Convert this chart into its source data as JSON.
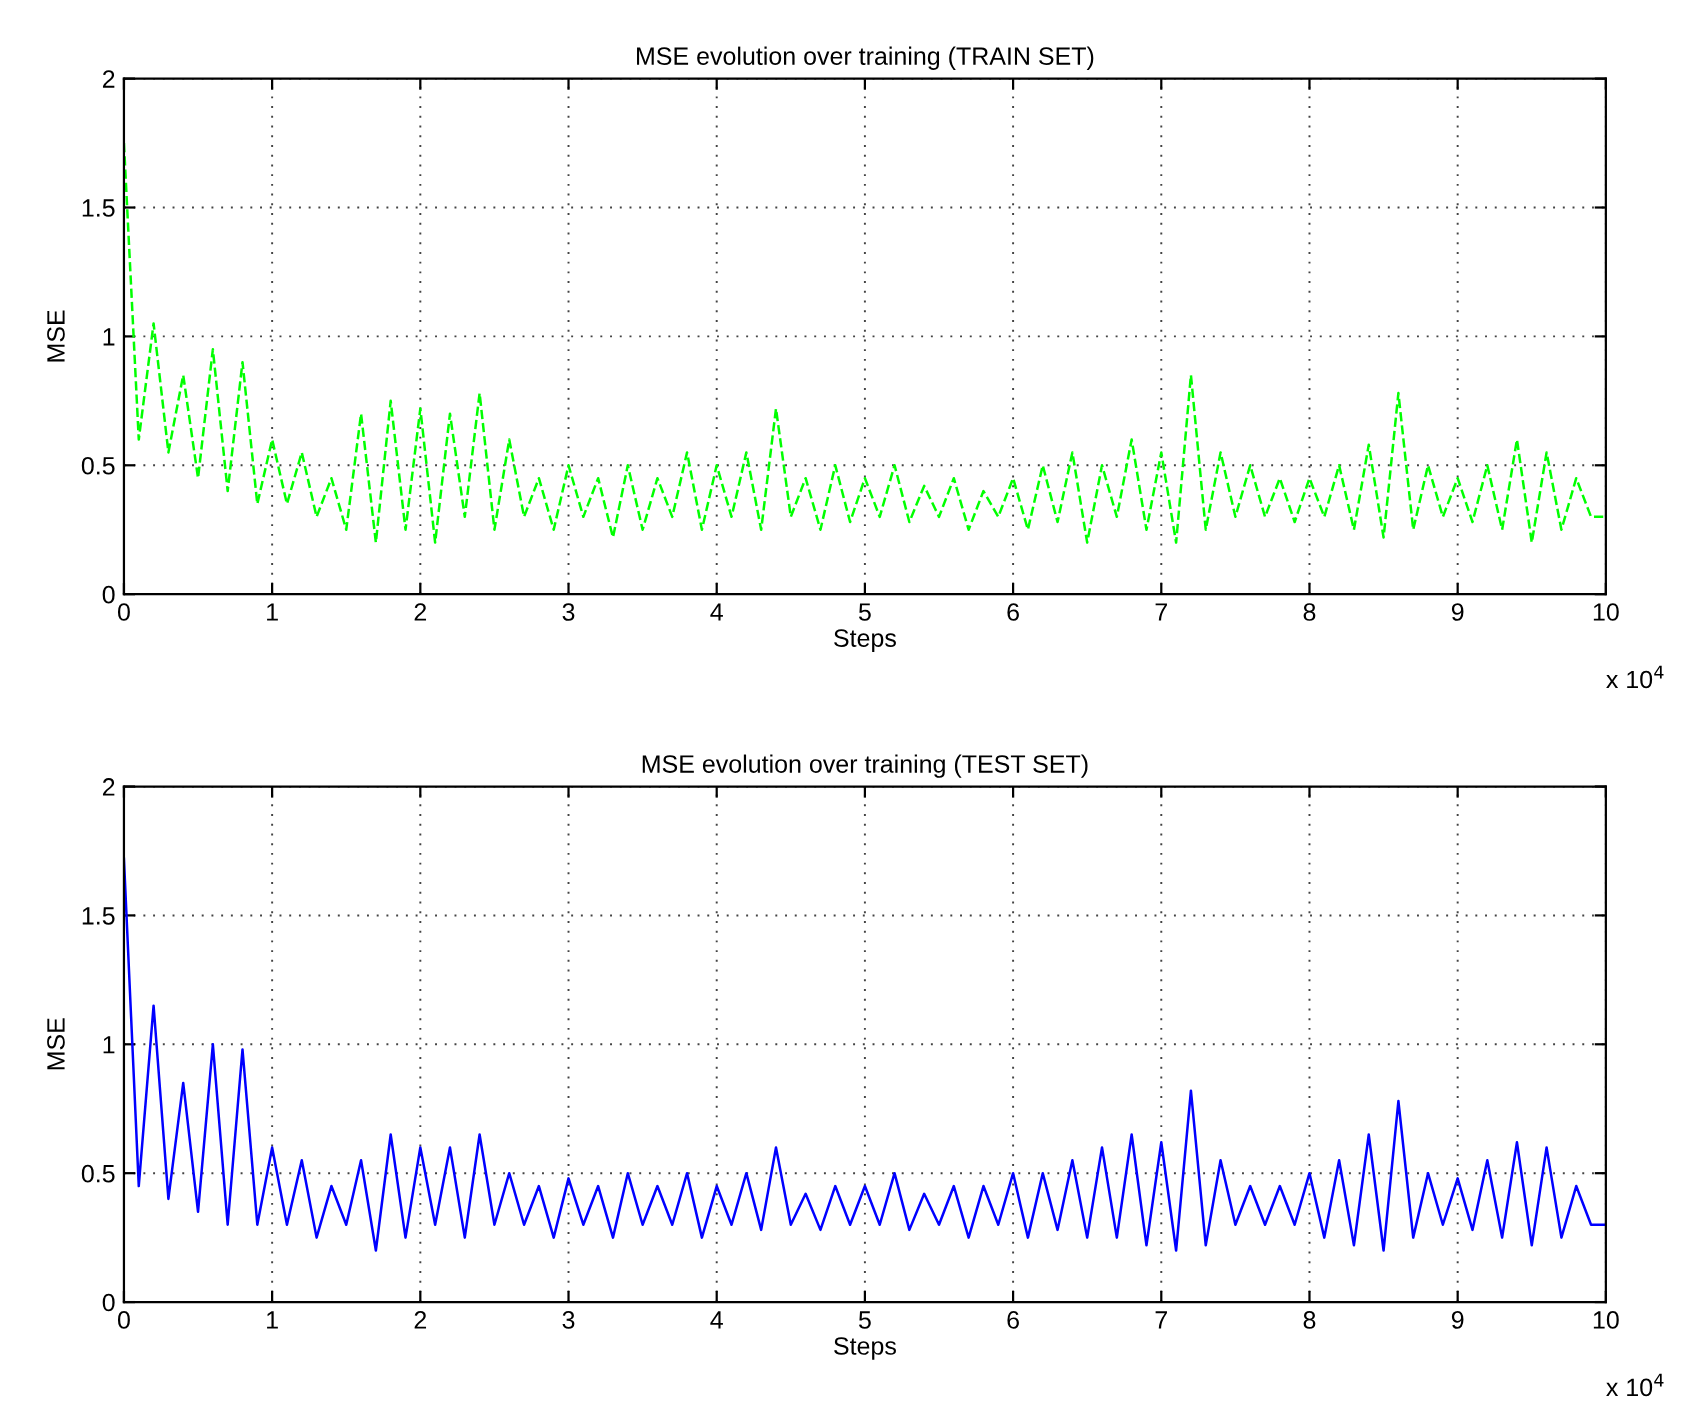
{
  "chart_data": [
    {
      "type": "line",
      "title": "MSE evolution over training (TRAIN SET)",
      "xlabel": "Steps",
      "ylabel": "MSE",
      "x": [
        0,
        0.1,
        0.2,
        0.3,
        0.4,
        0.5,
        0.6,
        0.7,
        0.8,
        0.9,
        1,
        1.1,
        1.2,
        1.3,
        1.4,
        1.5,
        1.6,
        1.7,
        1.8,
        1.9,
        2,
        2.1,
        2.2,
        2.3,
        2.4,
        2.5,
        2.6,
        2.7,
        2.8,
        2.9,
        3,
        3.1,
        3.2,
        3.3,
        3.4,
        3.5,
        3.6,
        3.7,
        3.8,
        3.9,
        4,
        4.1,
        4.2,
        4.3,
        4.4,
        4.5,
        4.6,
        4.7,
        4.8,
        4.9,
        5,
        5.1,
        5.2,
        5.3,
        5.4,
        5.5,
        5.6,
        5.7,
        5.8,
        5.9,
        6,
        6.1,
        6.2,
        6.3,
        6.4,
        6.5,
        6.6,
        6.7,
        6.8,
        6.9,
        7,
        7.1,
        7.2,
        7.3,
        7.4,
        7.5,
        7.6,
        7.7,
        7.8,
        7.9,
        8,
        8.1,
        8.2,
        8.3,
        8.4,
        8.5,
        8.6,
        8.7,
        8.8,
        8.9,
        9,
        9.1,
        9.2,
        9.3,
        9.4,
        9.5,
        9.6,
        9.7,
        9.8,
        9.9,
        10
      ],
      "series": [
        {
          "color": "#00ff00",
          "line_style": "dashed",
          "values": [
            1.75,
            0.6,
            1.05,
            0.55,
            0.85,
            0.45,
            0.95,
            0.4,
            0.9,
            0.35,
            0.6,
            0.35,
            0.55,
            0.3,
            0.45,
            0.25,
            0.7,
            0.2,
            0.75,
            0.25,
            0.72,
            0.2,
            0.7,
            0.3,
            0.78,
            0.25,
            0.6,
            0.3,
            0.45,
            0.25,
            0.5,
            0.3,
            0.45,
            0.22,
            0.5,
            0.25,
            0.45,
            0.3,
            0.55,
            0.25,
            0.5,
            0.3,
            0.55,
            0.25,
            0.72,
            0.3,
            0.45,
            0.25,
            0.5,
            0.28,
            0.45,
            0.3,
            0.5,
            0.28,
            0.42,
            0.3,
            0.45,
            0.25,
            0.4,
            0.3,
            0.45,
            0.25,
            0.5,
            0.28,
            0.55,
            0.2,
            0.5,
            0.3,
            0.6,
            0.25,
            0.55,
            0.2,
            0.85,
            0.25,
            0.55,
            0.3,
            0.5,
            0.3,
            0.45,
            0.28,
            0.45,
            0.3,
            0.5,
            0.25,
            0.58,
            0.22,
            0.78,
            0.25,
            0.5,
            0.3,
            0.45,
            0.28,
            0.5,
            0.25,
            0.6,
            0.2,
            0.55,
            0.25,
            0.45,
            0.3,
            0.3
          ]
        }
      ],
      "xlim": [
        0,
        10
      ],
      "xticks": [
        0,
        1,
        2,
        3,
        4,
        5,
        6,
        7,
        8,
        9,
        10
      ],
      "ylim": [
        0,
        2
      ],
      "yticks": [
        0,
        0.5,
        1,
        1.5,
        2
      ],
      "grid": true,
      "annotations": [
        "x 10$^{4}$"
      ]
    },
    {
      "type": "line",
      "title": "MSE evolution over training (TEST SET)",
      "xlabel": "Steps",
      "ylabel": "MSE",
      "x": [
        0,
        0.1,
        0.2,
        0.3,
        0.4,
        0.5,
        0.6,
        0.7,
        0.8,
        0.9,
        1,
        1.1,
        1.2,
        1.3,
        1.4,
        1.5,
        1.6,
        1.7,
        1.8,
        1.9,
        2,
        2.1,
        2.2,
        2.3,
        2.4,
        2.5,
        2.6,
        2.7,
        2.8,
        2.9,
        3,
        3.1,
        3.2,
        3.3,
        3.4,
        3.5,
        3.6,
        3.7,
        3.8,
        3.9,
        4,
        4.1,
        4.2,
        4.3,
        4.4,
        4.5,
        4.6,
        4.7,
        4.8,
        4.9,
        5,
        5.1,
        5.2,
        5.3,
        5.4,
        5.5,
        5.6,
        5.7,
        5.8,
        5.9,
        6,
        6.1,
        6.2,
        6.3,
        6.4,
        6.5,
        6.6,
        6.7,
        6.8,
        6.9,
        7,
        7.1,
        7.2,
        7.3,
        7.4,
        7.5,
        7.6,
        7.7,
        7.8,
        7.9,
        8,
        8.1,
        8.2,
        8.3,
        8.4,
        8.5,
        8.6,
        8.7,
        8.8,
        8.9,
        9,
        9.1,
        9.2,
        9.3,
        9.4,
        9.5,
        9.6,
        9.7,
        9.8,
        9.9,
        10
      ],
      "series": [
        {
          "color": "#0000ff",
          "line_style": "solid",
          "values": [
            1.72,
            0.45,
            1.15,
            0.4,
            0.85,
            0.35,
            1.0,
            0.3,
            0.98,
            0.3,
            0.6,
            0.3,
            0.55,
            0.25,
            0.45,
            0.3,
            0.55,
            0.2,
            0.65,
            0.25,
            0.6,
            0.3,
            0.6,
            0.25,
            0.65,
            0.3,
            0.5,
            0.3,
            0.45,
            0.25,
            0.48,
            0.3,
            0.45,
            0.25,
            0.5,
            0.3,
            0.45,
            0.3,
            0.5,
            0.25,
            0.45,
            0.3,
            0.5,
            0.28,
            0.6,
            0.3,
            0.42,
            0.28,
            0.45,
            0.3,
            0.45,
            0.3,
            0.5,
            0.28,
            0.42,
            0.3,
            0.45,
            0.25,
            0.45,
            0.3,
            0.5,
            0.25,
            0.5,
            0.28,
            0.55,
            0.25,
            0.6,
            0.25,
            0.65,
            0.22,
            0.62,
            0.2,
            0.82,
            0.22,
            0.55,
            0.3,
            0.45,
            0.3,
            0.45,
            0.3,
            0.5,
            0.25,
            0.55,
            0.22,
            0.65,
            0.2,
            0.78,
            0.25,
            0.5,
            0.3,
            0.48,
            0.28,
            0.55,
            0.25,
            0.62,
            0.22,
            0.6,
            0.25,
            0.45,
            0.3,
            0.3
          ]
        }
      ],
      "xlim": [
        0,
        10
      ],
      "xticks": [
        0,
        1,
        2,
        3,
        4,
        5,
        6,
        7,
        8,
        9,
        10
      ],
      "ylim": [
        0,
        2
      ],
      "yticks": [
        0,
        0.5,
        1,
        1.5,
        2
      ],
      "grid": true,
      "annotations": [
        "x 10$^{4}$"
      ]
    }
  ]
}
